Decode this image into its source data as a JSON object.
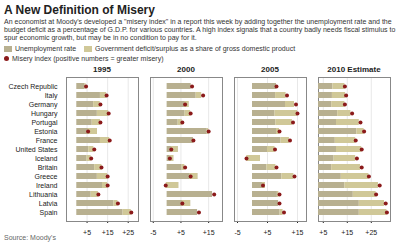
{
  "title": "A New Definition of Misery",
  "subtitle": "An economist at Moody's developed a \"misery index\" in a report this week by adding together the unemployment rate and the budget deficit as a percentage of G.D.P. for various countries. A high index signals that a country badly needs fiscal stimulus to spur economic growth, but may be in no condition to pay for it.",
  "caption": "Source: Moody's",
  "chart_data": [
    {
      "type": "bar",
      "title": "1995",
      "orientation": "horizontal",
      "stacked": true,
      "grid": true,
      "legend": "top",
      "categories": [
        "Czech Republic",
        "Italy",
        "Germany",
        "Hungary",
        "Portugal",
        "Estonia",
        "France",
        "United States",
        "Iceland",
        "Britain",
        "Greece",
        "Ireland",
        "Lithuania",
        "Latvia",
        "Spain"
      ],
      "series": [
        {
          "name": "Unemployment rate",
          "color": "#b8b090",
          "values": [
            4.0,
            11.5,
            8.2,
            10.0,
            7.5,
            10.0,
            11.5,
            5.8,
            5.0,
            8.7,
            10.0,
            12.5,
            7.0,
            18.0,
            22.5
          ]
        },
        {
          "name": "Government deficit/surplus as a share of gross domestic product",
          "color": "#d0c898",
          "values": [
            0.5,
            3.0,
            3.2,
            5.5,
            4.0,
            -4.5,
            4.5,
            2.5,
            2.0,
            3.5,
            5.0,
            2.5,
            3.5,
            2.0,
            4.0
          ]
        },
        {
          "name": "Misery index (positive numbers = greater misery)",
          "type": "scatter",
          "marker": "circle",
          "color": "#8b1a1a",
          "values": [
            4.5,
            14.5,
            11.5,
            15.5,
            11.5,
            5.5,
            16.0,
            8.5,
            7.0,
            12.0,
            15.0,
            15.0,
            10.5,
            20.0,
            26.5
          ]
        }
      ],
      "xlim": [
        -5,
        30
      ],
      "xticks": [
        {
          "value": 5,
          "label": "+5"
        },
        {
          "value": 15,
          "label": "+15"
        },
        {
          "value": 25,
          "label": "+25"
        }
      ]
    },
    {
      "type": "bar",
      "title": "2000",
      "orientation": "horizontal",
      "stacked": true,
      "grid": true,
      "categories": [
        "Czech Republic",
        "Italy",
        "Germany",
        "Hungary",
        "Portugal",
        "Estonia",
        "France",
        "United States",
        "Iceland",
        "Britain",
        "Greece",
        "Ireland",
        "Lithuania",
        "Latvia",
        "Spain"
      ],
      "series": [
        {
          "name": "Unemployment rate",
          "color": "#b8b090",
          "values": [
            8.7,
            10.5,
            7.9,
            6.5,
            4.0,
            14.5,
            9.5,
            4.0,
            2.4,
            5.4,
            11.1,
            4.2,
            16.4,
            8.5,
            11.0
          ]
        },
        {
          "name": "Government deficit/surplus as a share of gross domestic product",
          "color": "#d0c898",
          "values": [
            0.0,
            2.0,
            -1.5,
            2.0,
            1.5,
            0.5,
            0.0,
            -2.5,
            -1.5,
            1.0,
            -3.0,
            -4.5,
            0.0,
            -3.0,
            0.0
          ]
        },
        {
          "name": "Misery index (positive numbers = greater misery)",
          "type": "scatter",
          "marker": "circle",
          "color": "#8b1a1a",
          "values": [
            9.0,
            13.0,
            6.5,
            8.5,
            5.5,
            15.0,
            9.5,
            1.5,
            1.0,
            6.5,
            8.5,
            -0.5,
            17.0,
            5.5,
            11.5
          ]
        }
      ],
      "xlim": [
        -6,
        20
      ],
      "xticks": [
        -5,
        {
          "value": 5,
          "label": "+5"
        },
        {
          "value": 15,
          "label": "+15"
        }
      ]
    },
    {
      "type": "bar",
      "title": "2005",
      "orientation": "horizontal",
      "stacked": true,
      "grid": true,
      "categories": [
        "Czech Republic",
        "Italy",
        "Germany",
        "Hungary",
        "Portugal",
        "Estonia",
        "France",
        "United States",
        "Iceland",
        "Britain",
        "Greece",
        "Ireland",
        "Lithuania",
        "Latvia",
        "Spain"
      ],
      "series": [
        {
          "name": "Unemployment rate",
          "color": "#b8b090",
          "values": [
            8.0,
            7.7,
            11.0,
            7.5,
            7.8,
            8.0,
            9.5,
            5.0,
            2.6,
            4.8,
            9.8,
            4.3,
            8.3,
            8.7,
            9.2
          ]
        },
        {
          "name": "Government deficit/surplus as a share of gross domestic product",
          "color": "#d0c898",
          "values": [
            0.0,
            3.5,
            3.0,
            7.5,
            5.5,
            1.0,
            2.8,
            2.5,
            -4.5,
            3.0,
            4.0,
            -1.0,
            0.5,
            0.0,
            1.0
          ]
        },
        {
          "name": "Misery index (positive numbers = greater misery)",
          "type": "scatter",
          "marker": "circle",
          "color": "#8b1a1a",
          "values": [
            8.0,
            11.5,
            14.5,
            15.0,
            13.5,
            9.0,
            12.5,
            7.5,
            -2.0,
            8.0,
            14.0,
            3.5,
            9.0,
            9.0,
            10.5
          ]
        }
      ],
      "xlim": [
        -6,
        18
      ],
      "xticks": [
        -5,
        {
          "value": 5,
          "label": "+5"
        },
        {
          "value": 15,
          "label": "+15"
        }
      ]
    },
    {
      "type": "bar",
      "title": "2010 Estimate",
      "orientation": "horizontal",
      "stacked": true,
      "grid": true,
      "categories": [
        "Czech Republic",
        "Italy",
        "Germany",
        "Hungary",
        "Portugal",
        "Estonia",
        "France",
        "United States",
        "Iceland",
        "Britain",
        "Greece",
        "Ireland",
        "Lithuania",
        "Latvia",
        "Spain"
      ],
      "series": [
        {
          "name": "Unemployment rate",
          "color": "#b8b090",
          "values": [
            9.0,
            8.8,
            8.5,
            11.0,
            10.5,
            19.0,
            10.0,
            10.5,
            9.5,
            8.5,
            12.5,
            14.0,
            17.5,
            20.0,
            20.0
          ]
        },
        {
          "name": "Government deficit/surplus as a share of gross domestic product",
          "color": "#d0c898",
          "values": [
            5.0,
            5.5,
            5.5,
            5.5,
            9.5,
            3.0,
            8.5,
            10.5,
            9.0,
            12.0,
            11.5,
            14.0,
            9.5,
            10.5,
            11.5
          ]
        },
        {
          "name": "Misery index (positive numbers = greater misery)",
          "type": "scatter",
          "marker": "circle",
          "color": "#8b1a1a",
          "values": [
            14.0,
            14.5,
            14.0,
            17.0,
            20.5,
            22.0,
            18.5,
            21.0,
            19.0,
            21.0,
            24.0,
            28.5,
            27.0,
            31.0,
            31.5
          ]
        }
      ],
      "xlim": [
        3,
        33
      ],
      "xticks": [
        {
          "value": 5,
          "label": "+5"
        },
        {
          "value": 15,
          "label": "+15"
        },
        {
          "value": 25,
          "label": "+25"
        }
      ]
    }
  ]
}
